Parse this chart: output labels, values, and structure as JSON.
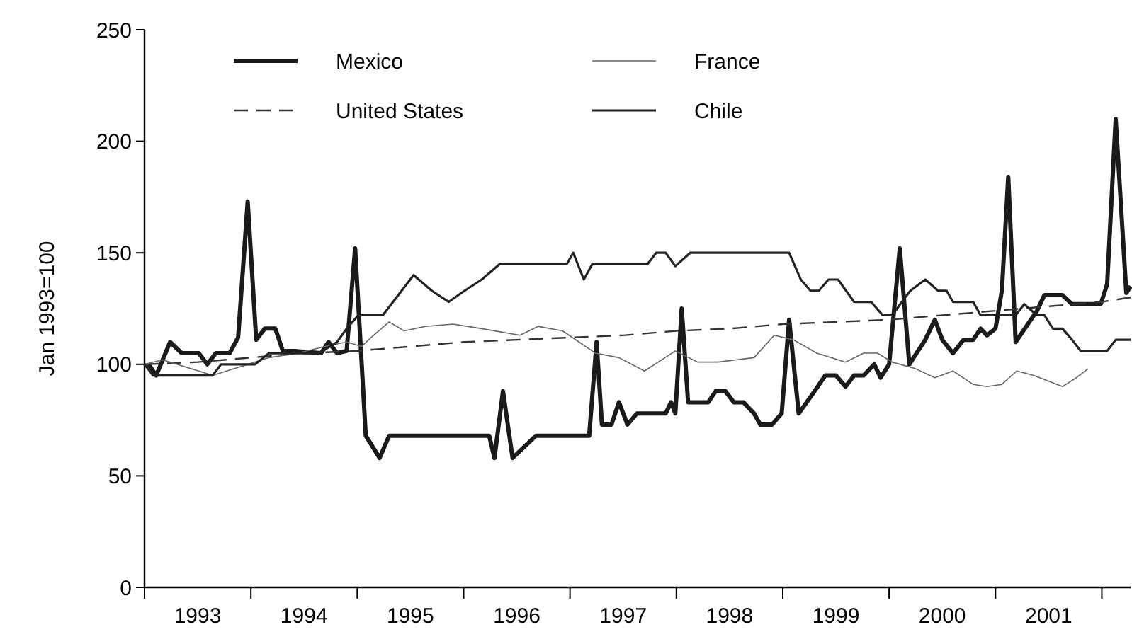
{
  "chart_data": {
    "type": "line",
    "ylabel": "Jan 1993=100",
    "xlim": [
      1993,
      2002.27
    ],
    "ylim": [
      0,
      250
    ],
    "yticks": [
      0,
      50,
      100,
      150,
      200,
      250
    ],
    "xticks": [
      {
        "value": 1993,
        "label": null
      },
      {
        "value": 1993.5,
        "label": "1993"
      },
      {
        "value": 1994,
        "label": null
      },
      {
        "value": 1994.5,
        "label": "1994"
      },
      {
        "value": 1995,
        "label": null
      },
      {
        "value": 1995.5,
        "label": "1995"
      },
      {
        "value": 1996,
        "label": null
      },
      {
        "value": 1996.5,
        "label": "1996"
      },
      {
        "value": 1997,
        "label": null
      },
      {
        "value": 1997.5,
        "label": "1997"
      },
      {
        "value": 1998,
        "label": null
      },
      {
        "value": 1998.5,
        "label": "1998"
      },
      {
        "value": 1999,
        "label": null
      },
      {
        "value": 1999.5,
        "label": "1999"
      },
      {
        "value": 2000,
        "label": null
      },
      {
        "value": 2000.5,
        "label": "2000"
      },
      {
        "value": 2001,
        "label": null
      },
      {
        "value": 2001.5,
        "label": "2001"
      },
      {
        "value": 2002,
        "label": null
      }
    ],
    "grid": false,
    "legend": "top left",
    "marker": "none",
    "series": [
      {
        "name": "Mexico",
        "color": "#1a1a1a",
        "line_style": "solid",
        "x": [
          1993.04,
          1993.11,
          1993.24,
          1993.35,
          1993.51,
          1993.59,
          1993.67,
          1993.8,
          1993.88,
          1993.97,
          1994.05,
          1994.13,
          1994.23,
          1994.3,
          1994.41,
          1994.66,
          1994.73,
          1994.81,
          1994.9,
          1994.98,
          1995.08,
          1995.21,
          1995.3,
          1996.24,
          1996.29,
          1996.37,
          1996.46,
          1996.57,
          1996.68,
          1997.18,
          1997.25,
          1997.3,
          1997.39,
          1997.46,
          1997.54,
          1997.63,
          1997.9,
          1997.95,
          1997.99,
          1998.05,
          1998.11,
          1998.3,
          1998.37,
          1998.46,
          1998.54,
          1998.63,
          1998.73,
          1998.79,
          1998.9,
          1998.99,
          1999.06,
          1999.15,
          1999.3,
          1999.4,
          1999.5,
          1999.59,
          1999.67,
          1999.76,
          1999.86,
          1999.92,
          2000,
          2000.1,
          2000.19,
          2000.34,
          2000.43,
          2000.5,
          2000.6,
          2000.7,
          2000.79,
          2000.86,
          2000.92,
          2001,
          2001.06,
          2001.12,
          2001.19,
          2001.39,
          2001.46,
          2001.63,
          2001.72,
          2001.99,
          2002.05,
          2002.13,
          2002.23,
          2002.27
        ],
        "values": [
          100,
          95,
          110,
          105,
          105,
          100,
          105,
          105,
          112,
          173,
          111,
          116,
          116,
          106,
          106,
          105,
          110,
          105,
          106,
          152,
          68,
          58,
          68,
          68,
          58,
          88,
          58,
          63,
          68,
          68,
          110,
          73,
          73,
          83,
          73,
          78,
          78,
          83,
          78,
          125,
          83,
          83,
          88,
          88,
          83,
          83,
          78,
          73,
          73,
          78,
          120,
          78,
          88,
          95,
          95,
          90,
          95,
          95,
          100,
          94,
          100,
          152,
          100,
          111,
          120,
          111,
          105,
          111,
          111,
          116,
          113,
          116,
          133,
          184,
          110,
          124,
          131,
          131,
          127,
          127,
          136,
          210,
          132,
          135
        ]
      },
      {
        "name": "United States",
        "color": "#333333",
        "line_style": "dashed",
        "x": [
          1993,
          1993.5,
          1994,
          1994.5,
          1995,
          1995.5,
          1996,
          1996.5,
          1997,
          1997.5,
          1998,
          1998.5,
          1999,
          1999.5,
          2000,
          2000.5,
          2001,
          2001.5,
          2002,
          2002.27
        ],
        "values": [
          100,
          101,
          103,
          105,
          106,
          108,
          110,
          111,
          112,
          113,
          115,
          116,
          118,
          119,
          120,
          122,
          124,
          126,
          128,
          130
        ]
      },
      {
        "name": "France",
        "color": "#666666",
        "line_style": "solid",
        "x": [
          1993,
          1993.17,
          1993.51,
          1993.64,
          1993.84,
          1994.17,
          1994.44,
          1994.7,
          1994.9,
          1995.04,
          1995.13,
          1995.3,
          1995.44,
          1995.64,
          1995.9,
          1996.17,
          1996.53,
          1996.7,
          1996.93,
          1997.24,
          1997.46,
          1997.7,
          1997.99,
          1998.2,
          1998.39,
          1998.73,
          1998.92,
          1999.1,
          1999.32,
          1999.59,
          1999.76,
          1999.89,
          2000.03,
          2000.25,
          2000.43,
          2000.6,
          2000.79,
          2000.92,
          2001.06,
          2001.2,
          2001.36,
          2001.63,
          2001.76,
          2001.87
        ],
        "values": [
          100,
          102,
          97,
          95,
          98,
          103,
          105,
          108,
          110,
          108,
          112,
          119,
          115,
          117,
          118,
          116,
          113,
          117,
          115,
          105,
          103,
          97,
          106,
          101,
          101,
          103,
          113,
          111,
          105,
          101,
          105,
          105,
          101,
          98,
          94,
          97,
          91,
          90,
          91,
          97,
          95,
          90,
          94,
          98
        ]
      },
      {
        "name": "Chile",
        "color": "#222222",
        "line_style": "solid",
        "x": [
          1993,
          1993.08,
          1993.64,
          1993.72,
          1994.04,
          1994.17,
          1994.64,
          1994.81,
          1994.9,
          1995.01,
          1995.24,
          1995.53,
          1995.7,
          1995.86,
          1996.01,
          1996.17,
          1996.34,
          1996.97,
          1997.03,
          1997.13,
          1997.21,
          1997.73,
          1997.81,
          1997.9,
          1997.99,
          1998.13,
          1999.06,
          1999.17,
          1999.26,
          1999.34,
          1999.43,
          1999.52,
          1999.67,
          1999.83,
          1999.94,
          2000.03,
          2000.12,
          2000.2,
          2000.34,
          2000.46,
          2000.54,
          2000.6,
          2000.79,
          2000.86,
          2000.94,
          2001.1,
          2001.19,
          2001.27,
          2001.39,
          2001.46,
          2001.54,
          2001.63,
          2001.72,
          2001.8,
          2002.05,
          2002.13,
          2002.27
        ],
        "values": [
          100,
          95,
          95,
          100,
          100,
          105,
          105,
          110,
          116,
          122,
          122,
          140,
          133,
          128,
          133,
          138,
          145,
          145,
          150,
          138,
          145,
          145,
          150,
          150,
          144,
          150,
          150,
          138,
          133,
          133,
          138,
          138,
          128,
          128,
          122,
          122,
          128,
          133,
          138,
          133,
          133,
          128,
          128,
          122,
          122,
          122,
          122,
          127,
          122,
          122,
          116,
          116,
          111,
          106,
          106,
          111,
          111
        ]
      }
    ]
  }
}
